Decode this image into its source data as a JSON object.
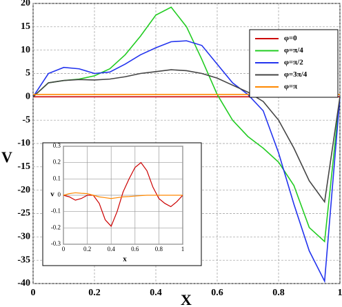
{
  "chart_data": [
    {
      "type": "line",
      "xlabel": "X",
      "ylabel": "V",
      "x": [
        0,
        0.05,
        0.1,
        0.15,
        0.2,
        0.25,
        0.3,
        0.35,
        0.4,
        0.45,
        0.5,
        0.55,
        0.6,
        0.65,
        0.7,
        0.75,
        0.8,
        0.85,
        0.9,
        0.95,
        1
      ],
      "series": [
        {
          "name": "φ=0",
          "color": "#cc0000",
          "values": [
            0,
            0,
            0,
            0,
            0,
            0,
            0,
            0,
            0,
            0,
            0,
            0,
            0,
            0,
            0,
            0,
            0,
            0,
            0,
            0,
            0
          ]
        },
        {
          "name": "φ=π/4",
          "color": "#22cc22",
          "values": [
            0,
            3,
            3.5,
            3.8,
            4.5,
            6,
            9,
            13,
            17.5,
            19.2,
            15,
            8,
            0.5,
            -5,
            -8.5,
            -11,
            -14,
            -19,
            -28,
            -31,
            0
          ]
        },
        {
          "name": "φ=π/2",
          "color": "#2233ee",
          "values": [
            0,
            5,
            6.3,
            6,
            5,
            5.3,
            7,
            9,
            10.5,
            11.8,
            12,
            11,
            7,
            3,
            0.5,
            -3,
            -12,
            -23,
            -33,
            -39.5,
            0
          ]
        },
        {
          "name": "φ=3π/4",
          "color": "#444444",
          "values": [
            0,
            3,
            3.5,
            3.7,
            3.6,
            3.8,
            4.3,
            5,
            5.4,
            5.8,
            5.6,
            5,
            4,
            2.5,
            1,
            -1,
            -5,
            -11,
            -18,
            -22.5,
            0
          ]
        },
        {
          "name": "φ=π",
          "color": "#ff8800",
          "values": [
            0.5,
            0.5,
            0.5,
            0.5,
            0.5,
            0.5,
            0.5,
            0.5,
            0.5,
            0.5,
            0.5,
            0.5,
            0.5,
            0.5,
            0.5,
            0.5,
            0.5,
            0.5,
            0.5,
            0.5,
            0.5
          ]
        }
      ],
      "xlim": [
        0,
        1
      ],
      "ylim": [
        -40,
        20
      ],
      "xticks": [
        0,
        0.2,
        0.4,
        0.6,
        0.8,
        1
      ],
      "yticks": [
        -40,
        -35,
        -30,
        -25,
        -20,
        -15,
        -10,
        -5,
        0,
        5,
        10,
        15,
        20
      ],
      "grid": true,
      "legend": "upper right"
    },
    {
      "type": "line",
      "xlabel": "x",
      "ylabel": "v",
      "x": [
        0,
        0.05,
        0.1,
        0.15,
        0.2,
        0.25,
        0.3,
        0.35,
        0.4,
        0.45,
        0.5,
        0.55,
        0.6,
        0.65,
        0.7,
        0.75,
        0.8,
        0.85,
        0.9,
        0.95,
        1
      ],
      "series": [
        {
          "color": "#cc0000",
          "values": [
            0,
            -0.01,
            -0.03,
            -0.02,
            0,
            0,
            -0.05,
            -0.15,
            -0.19,
            -0.1,
            0.02,
            0.1,
            0.17,
            0.2,
            0.15,
            0.05,
            -0.02,
            -0.05,
            -0.07,
            -0.04,
            0
          ]
        },
        {
          "color": "#ff8800",
          "values": [
            0,
            0.01,
            0.015,
            0.012,
            0.01,
            0,
            -0.01,
            -0.015,
            -0.02,
            -0.015,
            -0.01,
            -0.008,
            -0.005,
            -0.002,
            0,
            0,
            0,
            0,
            0,
            0,
            0
          ]
        }
      ],
      "xlim": [
        0,
        1
      ],
      "ylim": [
        -0.3,
        0.3
      ],
      "xticks": [
        0,
        0.2,
        0.4,
        0.6,
        0.8,
        1
      ],
      "yticks": [
        -0.3,
        -0.2,
        -0.1,
        0,
        0.1,
        0.2,
        0.3
      ],
      "grid": true
    }
  ]
}
